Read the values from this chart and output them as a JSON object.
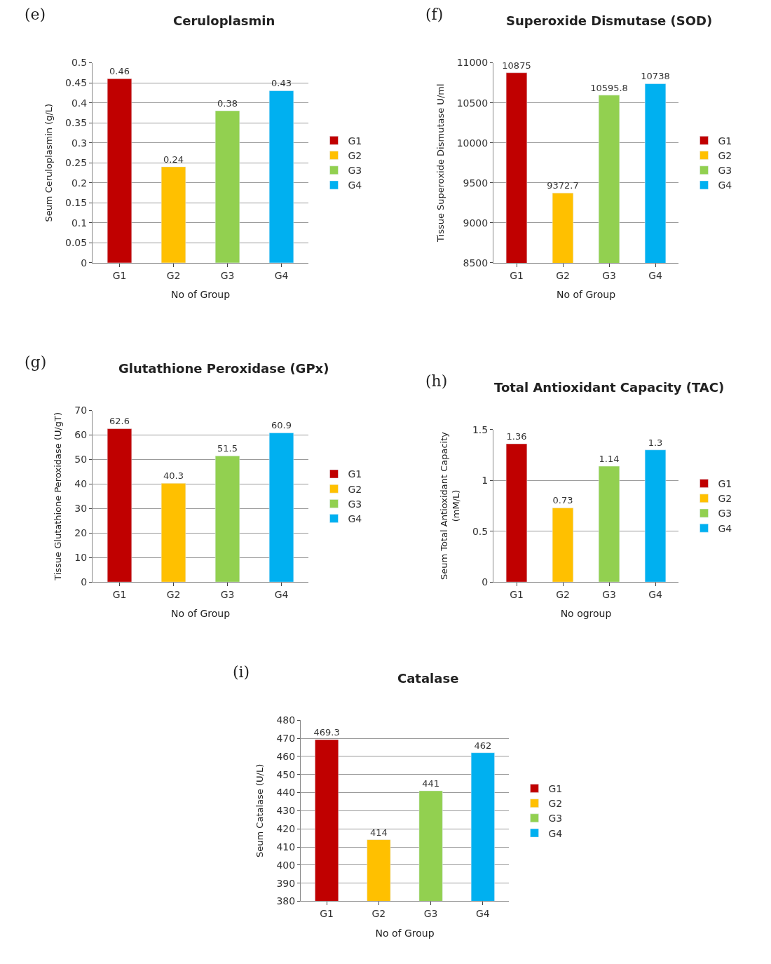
{
  "chart_data": [
    {
      "type": "bar",
      "title": "Ceruloplasmin",
      "xlabel": "No of Group",
      "ylabel": "Seum Ceruloplasmin (g/L)",
      "annotations": [
        "(e)"
      ],
      "categories": [
        "G1",
        "G2",
        "G3",
        "G4"
      ],
      "series": [
        {
          "name": "G1",
          "color": "#c00000",
          "values": [
            0.46,
            null,
            null,
            null
          ]
        },
        {
          "name": "G2",
          "color": "#ffc000",
          "values": [
            null,
            0.24,
            null,
            null
          ]
        },
        {
          "name": "G3",
          "color": "#92d050",
          "values": [
            null,
            null,
            0.38,
            null
          ]
        },
        {
          "name": "G4",
          "color": "#00b0f0",
          "values": [
            null,
            null,
            null,
            0.43
          ]
        }
      ],
      "ylim": [
        0,
        0.5
      ],
      "yticks": [
        0,
        0.05,
        0.1,
        0.15,
        0.2,
        0.25,
        0.3,
        0.35,
        0.4,
        0.45,
        0.5
      ],
      "grid": "y",
      "legend": "right",
      "data_labels": true
    },
    {
      "type": "bar",
      "title": "Superoxide Dismutase (SOD)",
      "xlabel": "No of Group",
      "ylabel": "Tissue Superoxide Dismutase U/ml",
      "annotations": [
        "(f)"
      ],
      "categories": [
        "G1",
        "G2",
        "G3",
        "G4"
      ],
      "series": [
        {
          "name": "G1",
          "color": "#c00000",
          "values": [
            10875,
            null,
            null,
            null
          ]
        },
        {
          "name": "G2",
          "color": "#ffc000",
          "values": [
            null,
            9372.7,
            null,
            null
          ]
        },
        {
          "name": "G3",
          "color": "#92d050",
          "values": [
            null,
            null,
            10595.8,
            null
          ]
        },
        {
          "name": "G4",
          "color": "#00b0f0",
          "values": [
            null,
            null,
            null,
            10738
          ]
        }
      ],
      "ylim": [
        8500,
        11000
      ],
      "yticks": [
        8500,
        9000,
        9500,
        10000,
        10500,
        11000
      ],
      "grid": "y",
      "legend": "right",
      "data_labels": true
    },
    {
      "type": "bar",
      "title": "Glutathione Peroxidase (GPx)",
      "xlabel": "No of Group",
      "ylabel": "Tissue Glutathione Peroxidase (U/gT)",
      "annotations": [
        "(g)"
      ],
      "categories": [
        "G1",
        "G2",
        "G3",
        "G4"
      ],
      "series": [
        {
          "name": "G1",
          "color": "#c00000",
          "values": [
            62.6,
            null,
            null,
            null
          ]
        },
        {
          "name": "G2",
          "color": "#ffc000",
          "values": [
            null,
            40.3,
            null,
            null
          ]
        },
        {
          "name": "G3",
          "color": "#92d050",
          "values": [
            null,
            null,
            51.5,
            null
          ]
        },
        {
          "name": "G4",
          "color": "#00b0f0",
          "values": [
            null,
            null,
            null,
            60.9
          ]
        }
      ],
      "ylim": [
        0,
        70
      ],
      "yticks": [
        0,
        10,
        20,
        30,
        40,
        50,
        60,
        70
      ],
      "grid": "y",
      "legend": "right",
      "data_labels": true
    },
    {
      "type": "bar",
      "title": "Total Antioxidant Capacity (TAC)",
      "xlabel": "No ogroup",
      "ylabel": "Seum Total Antioxidant Capacity\n(mM/L)",
      "annotations": [
        "(h)"
      ],
      "categories": [
        "G1",
        "G2",
        "G3",
        "G4"
      ],
      "series": [
        {
          "name": "G1",
          "color": "#c00000",
          "values": [
            1.36,
            null,
            null,
            null
          ]
        },
        {
          "name": "G2",
          "color": "#ffc000",
          "values": [
            null,
            0.73,
            null,
            null
          ]
        },
        {
          "name": "G3",
          "color": "#92d050",
          "values": [
            null,
            null,
            1.14,
            null
          ]
        },
        {
          "name": "G4",
          "color": "#00b0f0",
          "values": [
            null,
            null,
            null,
            1.3
          ]
        }
      ],
      "ylim": [
        0,
        1.5
      ],
      "yticks": [
        0,
        0.5,
        1,
        1.5
      ],
      "grid": "y",
      "legend": "right",
      "data_labels": true
    },
    {
      "type": "bar",
      "title": "Catalase",
      "xlabel": "No of Group",
      "ylabel": "Seum Catalase (U/L)",
      "annotations": [
        "(i)"
      ],
      "categories": [
        "G1",
        "G2",
        "G3",
        "G4"
      ],
      "series": [
        {
          "name": "G1",
          "color": "#c00000",
          "values": [
            469.3,
            null,
            null,
            null
          ]
        },
        {
          "name": "G2",
          "color": "#ffc000",
          "values": [
            null,
            414,
            null,
            null
          ]
        },
        {
          "name": "G3",
          "color": "#92d050",
          "values": [
            null,
            null,
            441,
            null
          ]
        },
        {
          "name": "G4",
          "color": "#00b0f0",
          "values": [
            null,
            null,
            null,
            462
          ]
        }
      ],
      "ylim": [
        380,
        480
      ],
      "yticks": [
        380,
        390,
        400,
        410,
        420,
        430,
        440,
        450,
        460,
        470,
        480
      ],
      "grid": "y",
      "legend": "right",
      "data_labels": true
    }
  ]
}
